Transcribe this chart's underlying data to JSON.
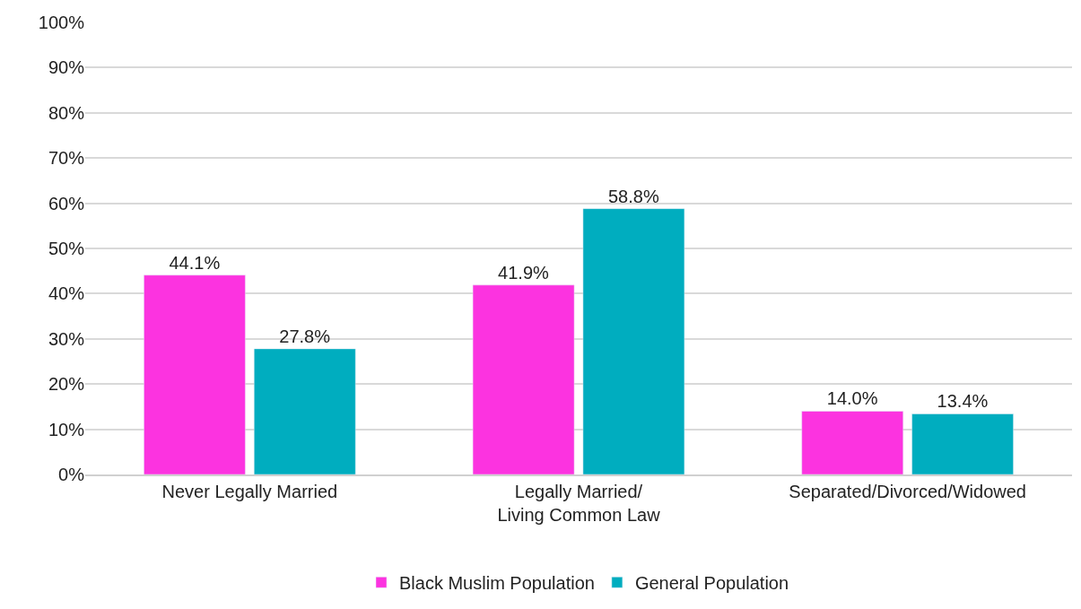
{
  "chart_data": {
    "type": "bar",
    "categories": [
      "Never Legally Married",
      "Legally Married/\nLiving Common Law",
      "Separated/Divorced/Widowed"
    ],
    "series": [
      {
        "name": "Black Muslim Population",
        "color": "#fc33e0",
        "values": [
          44.1,
          41.9,
          14.0
        ],
        "value_labels": [
          "44.1%",
          "41.9%",
          "14.0%"
        ]
      },
      {
        "name": "General Population",
        "color": "#00adbf",
        "values": [
          27.8,
          58.8,
          13.4
        ],
        "value_labels": [
          "27.8%",
          "58.8%",
          "13.4%"
        ]
      }
    ],
    "ylim": [
      0,
      100
    ],
    "yticks": [
      {
        "value": 0,
        "label": "0%"
      },
      {
        "value": 10,
        "label": "10%"
      },
      {
        "value": 20,
        "label": "20%"
      },
      {
        "value": 30,
        "label": "30%"
      },
      {
        "value": 40,
        "label": "40%"
      },
      {
        "value": 50,
        "label": "50%"
      },
      {
        "value": 60,
        "label": "60%"
      },
      {
        "value": 70,
        "label": "70%"
      },
      {
        "value": 80,
        "label": "80%"
      },
      {
        "value": 90,
        "label": "90%"
      },
      {
        "value": 100,
        "label": "100%"
      }
    ],
    "grid": "y",
    "legend": "bottom"
  }
}
